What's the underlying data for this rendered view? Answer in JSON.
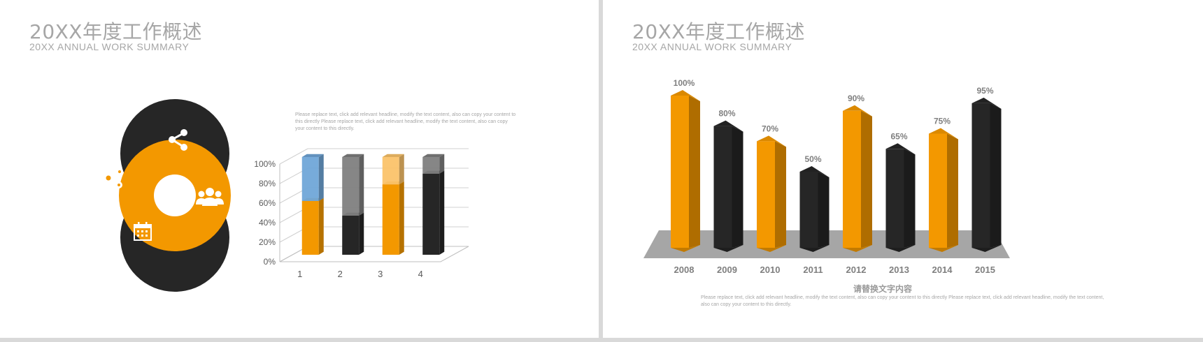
{
  "left_slide": {
    "title": "20XX年度工作概述",
    "subtitle": "20XX ANNUAL WORK SUMMARY",
    "description": "Please replace text, click add relevant headline, modify the text content, also can copy your content to this directly Please replace text, click add relevant headline, modify the text content, also can copy your content to this directly.",
    "icons": [
      "share-icon",
      "gears-icon",
      "group-icon",
      "calendar-icon"
    ]
  },
  "right_slide": {
    "title": "20XX年度工作概述",
    "subtitle": "20XX ANNUAL WORK SUMMARY",
    "caption": "请替换文字内容",
    "description": "Please replace text, click add relevant headline, modify the text content, also can copy your content to this directly Please replace text, click add relevant headline, modify the text content, also can copy your content to this directly."
  },
  "colors": {
    "orange": "#f39800",
    "orange_dark": "#c07100",
    "black": "#262626",
    "black_dark": "#141414",
    "blue": "#70a6d8",
    "gray_ghost": "#7f7f7f",
    "orange_light": "#fbc36a",
    "floor": "#a6a6a6",
    "label_gray": "#7f7f7f"
  },
  "chart_data": [
    {
      "type": "bar",
      "subtype": "3d-stacked-percent",
      "categories": [
        "1",
        "2",
        "3",
        "4"
      ],
      "series": [
        {
          "values": [
            55,
            40,
            72,
            83
          ],
          "colors": [
            "#f39800",
            "#262626",
            "#f39800",
            "#262626"
          ]
        },
        {
          "values": [
            45,
            60,
            28,
            17
          ],
          "colors": [
            "#70a6d8",
            "#7f7f7f",
            "#fbc36a",
            "#7f7f7f"
          ]
        }
      ],
      "yticks": [
        "0%",
        "20%",
        "40%",
        "60%",
        "80%",
        "100%"
      ],
      "ylim": [
        0,
        100
      ],
      "grid": true
    },
    {
      "type": "bar",
      "subtype": "3d",
      "categories": [
        "2008",
        "2009",
        "2010",
        "2011",
        "2012",
        "2013",
        "2014",
        "2015"
      ],
      "values": [
        100,
        80,
        70,
        50,
        90,
        65,
        75,
        95
      ],
      "value_labels": [
        "100%",
        "80%",
        "70%",
        "50%",
        "90%",
        "65%",
        "75%",
        "95%"
      ],
      "colors": [
        "#f39800",
        "#262626",
        "#f39800",
        "#262626",
        "#f39800",
        "#262626",
        "#f39800",
        "#262626"
      ],
      "ylim": [
        0,
        100
      ],
      "grid": false
    }
  ]
}
